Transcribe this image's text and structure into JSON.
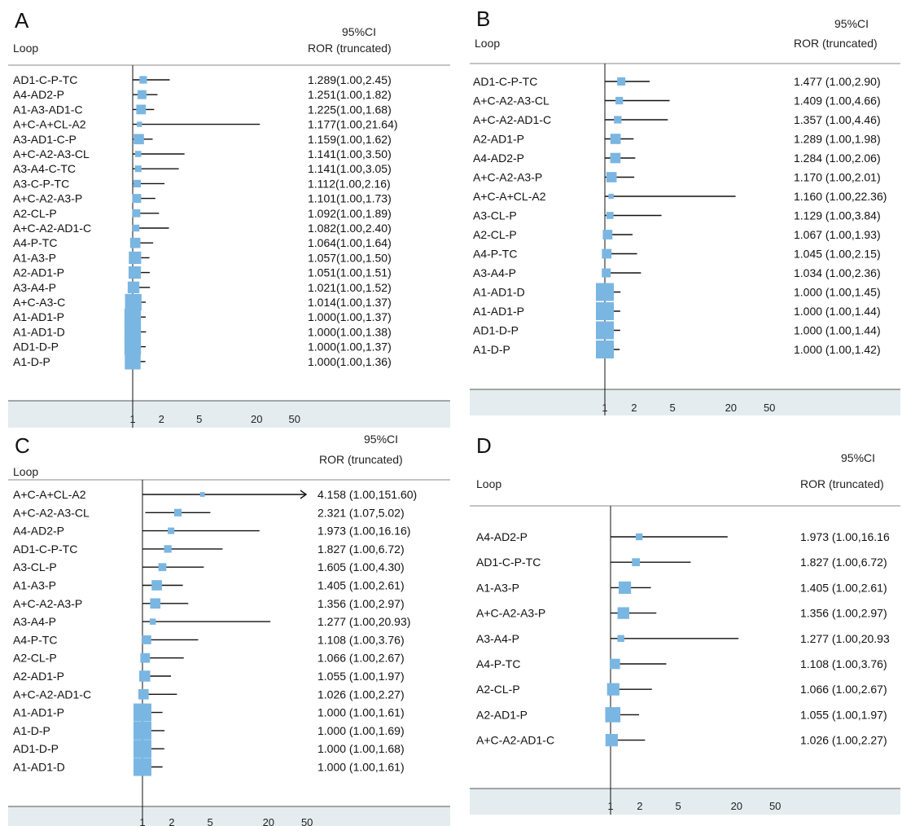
{
  "chart_data": [
    {
      "type": "forest",
      "panel_label": "A",
      "column_headers": {
        "loop": "Loop",
        "ci": "95%CI",
        "ror": "ROR",
        "truncated": "(truncated)"
      },
      "x_scale": "log",
      "x_ticks": [
        1,
        2,
        5,
        20,
        50
      ],
      "reference_line": 1,
      "rows": [
        {
          "loop": "AD1-C-P-TC",
          "ror": 1.289,
          "lower": 1.0,
          "upper": 2.45,
          "text": "1.289(1.00,2.45)",
          "weight": 0.25
        },
        {
          "loop": "A4-AD2-P",
          "ror": 1.251,
          "lower": 1.0,
          "upper": 1.82,
          "text": "1.251(1.00,1.82)",
          "weight": 0.35
        },
        {
          "loop": "A1-A3-AD1-C",
          "ror": 1.225,
          "lower": 1.0,
          "upper": 1.68,
          "text": "1.225(1.00,1.68)",
          "weight": 0.4
        },
        {
          "loop": "A+C-A+CL-A2",
          "ror": 1.177,
          "lower": 1.0,
          "upper": 21.64,
          "text": "1.177(1.00,21.64)",
          "weight": 0.08
        },
        {
          "loop": "A3-AD1-C-P",
          "ror": 1.159,
          "lower": 1.0,
          "upper": 1.62,
          "text": "1.159(1.00,1.62)",
          "weight": 0.45
        },
        {
          "loop": "A+C-A2-A3-CL",
          "ror": 1.141,
          "lower": 1.0,
          "upper": 3.5,
          "text": "1.141(1.00,3.50)",
          "weight": 0.15
        },
        {
          "loop": "A3-A4-C-TC",
          "ror": 1.141,
          "lower": 1.0,
          "upper": 3.05,
          "text": "1.141(1.00,3.05)",
          "weight": 0.18
        },
        {
          "loop": "A3-C-P-TC",
          "ror": 1.112,
          "lower": 1.0,
          "upper": 2.16,
          "text": "1.112(1.00,2.16)",
          "weight": 0.25
        },
        {
          "loop": "A+C-A2-A3-P",
          "ror": 1.101,
          "lower": 1.0,
          "upper": 1.73,
          "text": "1.101(1.00,1.73)",
          "weight": 0.35
        },
        {
          "loop": "A2-CL-P",
          "ror": 1.092,
          "lower": 1.0,
          "upper": 1.89,
          "text": "1.092(1.00,1.89)",
          "weight": 0.28
        },
        {
          "loop": "A+C-A2-AD1-C",
          "ror": 1.082,
          "lower": 1.0,
          "upper": 2.4,
          "text": "1.082(1.00,2.40)",
          "weight": 0.2
        },
        {
          "loop": "A4-P-TC",
          "ror": 1.064,
          "lower": 1.0,
          "upper": 1.64,
          "text": "1.064(1.00,1.64)",
          "weight": 0.45
        },
        {
          "loop": "A1-A3-P",
          "ror": 1.057,
          "lower": 1.0,
          "upper": 1.5,
          "text": "1.057(1.00,1.50)",
          "weight": 0.6
        },
        {
          "loop": "A2-AD1-P",
          "ror": 1.051,
          "lower": 1.0,
          "upper": 1.51,
          "text": "1.051(1.00,1.51)",
          "weight": 0.6
        },
        {
          "loop": "A3-A4-P",
          "ror": 1.021,
          "lower": 1.0,
          "upper": 1.52,
          "text": "1.021(1.00,1.52)",
          "weight": 0.55
        },
        {
          "loop": "A+C-A3-C",
          "ror": 1.014,
          "lower": 1.0,
          "upper": 1.37,
          "text": "1.014(1.00,1.37)",
          "weight": 0.9
        },
        {
          "loop": "A1-AD1-P",
          "ror": 1.0,
          "lower": 1.0,
          "upper": 1.37,
          "text": "1.000(1.00,1.37)",
          "weight": 0.9
        },
        {
          "loop": "A1-AD1-D",
          "ror": 1.0,
          "lower": 1.0,
          "upper": 1.38,
          "text": "1.000(1.00,1.38)",
          "weight": 0.9
        },
        {
          "loop": "AD1-D-P",
          "ror": 1.0,
          "lower": 1.0,
          "upper": 1.37,
          "text": "1.000(1.00,1.37)",
          "weight": 0.9
        },
        {
          "loop": "A1-D-P",
          "ror": 1.0,
          "lower": 1.0,
          "upper": 1.36,
          "text": "1.000(1.00,1.36)",
          "weight": 0.85
        }
      ]
    },
    {
      "type": "forest",
      "panel_label": "B",
      "column_headers": {
        "loop": "Loop",
        "ci": "95%CI",
        "ror": "ROR",
        "truncated": "(truncated)"
      },
      "x_scale": "log",
      "x_ticks": [
        1,
        2,
        5,
        20,
        50
      ],
      "reference_line": 1,
      "rows": [
        {
          "loop": "AD1-C-P-TC",
          "ror": 1.477,
          "lower": 1.0,
          "upper": 2.9,
          "text": "1.477 (1.00,2.90)",
          "weight": 0.3
        },
        {
          "loop": "A+C-A2-A3-CL",
          "ror": 1.409,
          "lower": 1.0,
          "upper": 4.66,
          "text": "1.409 (1.00,4.66)",
          "weight": 0.25
        },
        {
          "loop": "A+C-A2-AD1-C",
          "ror": 1.357,
          "lower": 1.0,
          "upper": 4.46,
          "text": "1.357 (1.00,4.46)",
          "weight": 0.25
        },
        {
          "loop": "A2-AD1-P",
          "ror": 1.289,
          "lower": 1.0,
          "upper": 1.98,
          "text": "1.289 (1.00,1.98)",
          "weight": 0.45
        },
        {
          "loop": "A4-AD2-P",
          "ror": 1.284,
          "lower": 1.0,
          "upper": 2.06,
          "text": "1.284 (1.00,2.06)",
          "weight": 0.45
        },
        {
          "loop": "A+C-A2-A3-P",
          "ror": 1.17,
          "lower": 1.0,
          "upper": 2.01,
          "text": "1.170 (1.00,2.01)",
          "weight": 0.45
        },
        {
          "loop": "A+C-A+CL-A2",
          "ror": 1.16,
          "lower": 1.0,
          "upper": 22.36,
          "text": "1.160 (1.00,22.36)",
          "weight": 0.08
        },
        {
          "loop": "A3-CL-P",
          "ror": 1.129,
          "lower": 1.0,
          "upper": 3.84,
          "text": "1.129 (1.00,3.84)",
          "weight": 0.22
        },
        {
          "loop": "A2-CL-P",
          "ror": 1.067,
          "lower": 1.0,
          "upper": 1.93,
          "text": "1.067 (1.00,1.93)",
          "weight": 0.4
        },
        {
          "loop": "A4-P-TC",
          "ror": 1.045,
          "lower": 1.0,
          "upper": 2.15,
          "text": "1.045 (1.00,2.15)",
          "weight": 0.4
        },
        {
          "loop": "A3-A4-P",
          "ror": 1.034,
          "lower": 1.0,
          "upper": 2.36,
          "text": "1.034 (1.00,2.36)",
          "weight": 0.35
        },
        {
          "loop": "A1-AD1-D",
          "ror": 1.0,
          "lower": 1.0,
          "upper": 1.45,
          "text": "1.000 (1.00,1.45)",
          "weight": 1.0
        },
        {
          "loop": "A1-AD1-P",
          "ror": 1.0,
          "lower": 1.0,
          "upper": 1.44,
          "text": "1.000 (1.00,1.44)",
          "weight": 1.0
        },
        {
          "loop": "AD1-D-P",
          "ror": 1.0,
          "lower": 1.0,
          "upper": 1.44,
          "text": "1.000 (1.00,1.44)",
          "weight": 1.0
        },
        {
          "loop": "A1-D-P",
          "ror": 1.0,
          "lower": 1.0,
          "upper": 1.42,
          "text": "1.000 (1.00,1.42)",
          "weight": 1.0
        }
      ]
    },
    {
      "type": "forest",
      "panel_label": "C",
      "column_headers": {
        "loop": "Loop",
        "ci": "95%CI",
        "ror": "ROR",
        "truncated": "(truncated)"
      },
      "x_scale": "log",
      "x_ticks": [
        1,
        2,
        5,
        20,
        50
      ],
      "reference_line": 1,
      "rows": [
        {
          "loop": "A+C-A+CL-A2",
          "ror": 4.158,
          "lower": 1.0,
          "upper": 151.6,
          "text": "4.158 (1.00,151.60)",
          "weight": 0.05,
          "upper_truncated": true
        },
        {
          "loop": "A+C-A2-A3-CL",
          "ror": 2.321,
          "lower": 1.07,
          "upper": 5.02,
          "text": "2.321 (1.07,5.02)",
          "weight": 0.25
        },
        {
          "loop": "A4-AD2-P",
          "ror": 1.973,
          "lower": 1.0,
          "upper": 16.16,
          "text": "1.973 (1.00,16.16)",
          "weight": 0.18
        },
        {
          "loop": "AD1-C-P-TC",
          "ror": 1.827,
          "lower": 1.0,
          "upper": 6.72,
          "text": "1.827 (1.00,6.72)",
          "weight": 0.25
        },
        {
          "loop": "A3-CL-P",
          "ror": 1.605,
          "lower": 1.0,
          "upper": 4.3,
          "text": "1.605 (1.00,4.30)",
          "weight": 0.28
        },
        {
          "loop": "A1-A3-P",
          "ror": 1.405,
          "lower": 1.0,
          "upper": 2.61,
          "text": "1.405 (1.00,2.61)",
          "weight": 0.45
        },
        {
          "loop": "A+C-A2-A3-P",
          "ror": 1.356,
          "lower": 1.0,
          "upper": 2.97,
          "text": "1.356 (1.00,2.97)",
          "weight": 0.45
        },
        {
          "loop": "A3-A4-P",
          "ror": 1.277,
          "lower": 1.0,
          "upper": 20.93,
          "text": "1.277 (1.00,20.93)",
          "weight": 0.15
        },
        {
          "loop": "A4-P-TC",
          "ror": 1.108,
          "lower": 1.0,
          "upper": 3.76,
          "text": "1.108 (1.00,3.76)",
          "weight": 0.35
        },
        {
          "loop": "A2-CL-P",
          "ror": 1.066,
          "lower": 1.0,
          "upper": 2.67,
          "text": "1.066 (1.00,2.67)",
          "weight": 0.4
        },
        {
          "loop": "A2-AD1-P",
          "ror": 1.055,
          "lower": 1.0,
          "upper": 1.97,
          "text": "1.055 (1.00,1.97)",
          "weight": 0.5
        },
        {
          "loop": "A+C-A2-AD1-C",
          "ror": 1.026,
          "lower": 1.0,
          "upper": 2.27,
          "text": "1.026 (1.00,2.27)",
          "weight": 0.45
        },
        {
          "loop": "A1-AD1-P",
          "ror": 1.0,
          "lower": 1.0,
          "upper": 1.61,
          "text": "1.000 (1.00,1.61)",
          "weight": 1.0
        },
        {
          "loop": "A1-D-P",
          "ror": 1.0,
          "lower": 1.0,
          "upper": 1.69,
          "text": "1.000 (1.00,1.69)",
          "weight": 1.0
        },
        {
          "loop": "AD1-D-P",
          "ror": 1.0,
          "lower": 1.0,
          "upper": 1.68,
          "text": "1.000 (1.00,1.68)",
          "weight": 1.0
        },
        {
          "loop": "A1-AD1-D",
          "ror": 1.0,
          "lower": 1.0,
          "upper": 1.61,
          "text": "1.000 (1.00,1.61)",
          "weight": 1.0
        }
      ]
    },
    {
      "type": "forest",
      "panel_label": "D",
      "column_headers": {
        "loop": "Loop",
        "ci": "95%CI",
        "ror": "ROR",
        "truncated": "(truncated)"
      },
      "x_scale": "log",
      "x_ticks": [
        1,
        2,
        5,
        20,
        50
      ],
      "reference_line": 1,
      "rows": [
        {
          "loop": "A4-AD2-P",
          "ror": 1.973,
          "lower": 1.0,
          "upper": 16.16,
          "text": "1.973 (1.00,16.16",
          "weight": 0.2
        },
        {
          "loop": "AD1-C-P-TC",
          "ror": 1.827,
          "lower": 1.0,
          "upper": 6.72,
          "text": "1.827 (1.00,6.72)",
          "weight": 0.28
        },
        {
          "loop": "A1-A3-P",
          "ror": 1.405,
          "lower": 1.0,
          "upper": 2.61,
          "text": "1.405 (1.00,2.61)",
          "weight": 0.6
        },
        {
          "loop": "A+C-A2-A3-P",
          "ror": 1.356,
          "lower": 1.0,
          "upper": 2.97,
          "text": "1.356 (1.00,2.97)",
          "weight": 0.55
        },
        {
          "loop": "A3-A4-P",
          "ror": 1.277,
          "lower": 1.0,
          "upper": 20.93,
          "text": "1.277 (1.00,20.93",
          "weight": 0.2
        },
        {
          "loop": "A4-P-TC",
          "ror": 1.108,
          "lower": 1.0,
          "upper": 3.76,
          "text": "1.108 (1.00,3.76)",
          "weight": 0.45
        },
        {
          "loop": "A2-CL-P",
          "ror": 1.066,
          "lower": 1.0,
          "upper": 2.67,
          "text": "1.066 (1.00,2.67)",
          "weight": 0.6
        },
        {
          "loop": "A2-AD1-P",
          "ror": 1.055,
          "lower": 1.0,
          "upper": 1.97,
          "text": "1.055 (1.00,1.97)",
          "weight": 0.8
        },
        {
          "loop": "A+C-A2-AD1-C",
          "ror": 1.026,
          "lower": 1.0,
          "upper": 2.27,
          "text": "1.026 (1.00,2.27)",
          "weight": 0.6
        }
      ]
    }
  ],
  "colors": {
    "marker": "#7ab6e2",
    "line": "#111111",
    "axis_band": "#e4ecf0",
    "separator": "#555555"
  }
}
